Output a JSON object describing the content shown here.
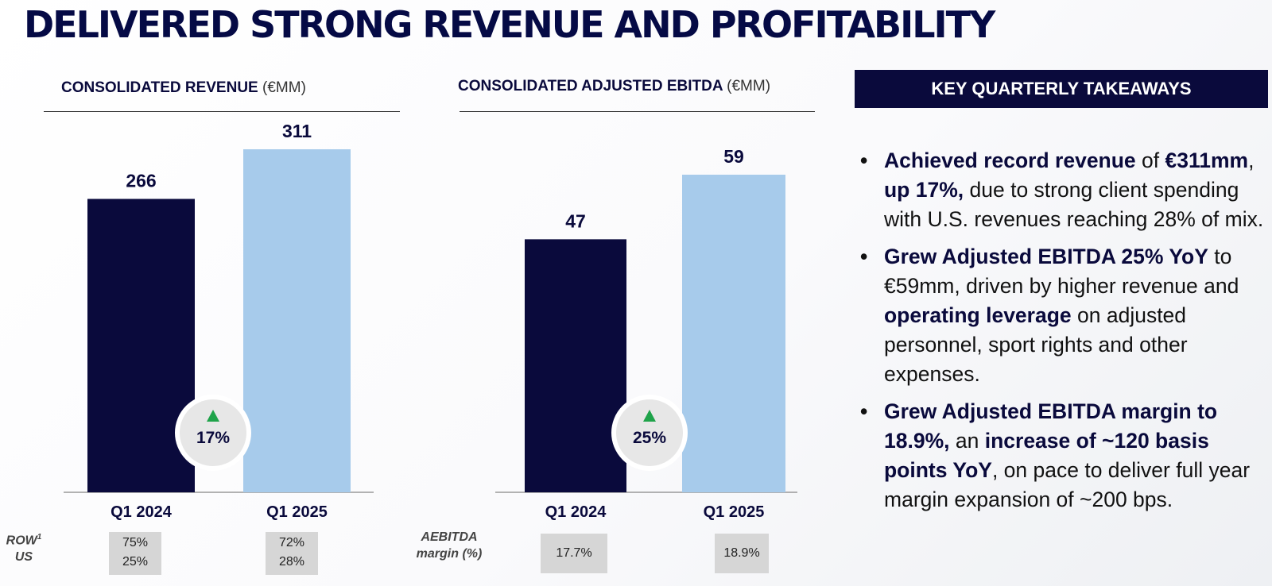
{
  "title": "DELIVERED STRONG REVENUE AND PROFITABILITY",
  "colors": {
    "navy": "#0a0a3c",
    "light_blue": "#a7cbeb",
    "growth_arrow": "#1fa34a",
    "stat_box": "#d6d6d6"
  },
  "chart_data": [
    {
      "type": "bar",
      "title": "CONSOLIDATED REVENUE",
      "unit": "(€MM)",
      "categories": [
        "Q1 2024",
        "Q1 2025"
      ],
      "values": [
        266,
        311
      ],
      "labels": [
        "266",
        "311"
      ],
      "growth": "17%",
      "ylim": [
        0,
        311
      ]
    },
    {
      "type": "bar",
      "title": "CONSOLIDATED ADJUSTED EBITDA",
      "unit": "(€MM)",
      "categories": [
        "Q1 2024",
        "Q1 2025"
      ],
      "values": [
        47,
        59
      ],
      "labels": [
        "47",
        "59"
      ],
      "growth": "25%",
      "ylim": [
        0,
        59
      ]
    }
  ],
  "revenue_mix": {
    "row_label": "ROW",
    "row_superscript": "1",
    "us_label": "US",
    "q1_2024": [
      "75%",
      "25%"
    ],
    "q1_2025": [
      "72%",
      "28%"
    ]
  },
  "margin": {
    "label_line1": "AEBITDA",
    "label_line2": "margin (%)",
    "q1_2024": "17.7%",
    "q1_2025": "18.9%"
  },
  "takeaways": {
    "header": "KEY QUARTERLY TAKEAWAYS",
    "items": [
      [
        {
          "text": "Achieved record revenue",
          "bold": true
        },
        {
          "text": " of ",
          "bold": false
        },
        {
          "text": "€311mm",
          "bold": true
        },
        {
          "text": ", ",
          "bold": false
        },
        {
          "text": "up 17%,",
          "bold": true
        },
        {
          "text": " due to strong client spending with U.S. revenues reaching 28% of mix.",
          "bold": false
        }
      ],
      [
        {
          "text": "Grew Adjusted EBITDA 25% YoY",
          "bold": true
        },
        {
          "text": " to €59mm, driven by higher revenue and ",
          "bold": false
        },
        {
          "text": "operating leverage",
          "bold": true
        },
        {
          "text": " on adjusted personnel, sport rights and other expenses.",
          "bold": false
        }
      ],
      [
        {
          "text": "Grew Adjusted EBITDA margin to 18.9%,",
          "bold": true
        },
        {
          "text": " an ",
          "bold": false
        },
        {
          "text": "increase of ~120 basis points YoY",
          "bold": true
        },
        {
          "text": ", on pace to deliver full year margin expansion of ~200 bps.",
          "bold": false
        }
      ]
    ]
  }
}
